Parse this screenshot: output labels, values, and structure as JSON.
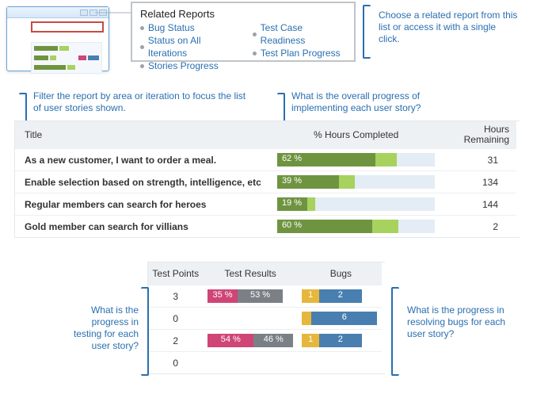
{
  "colors": {
    "link": "#2a6fb0",
    "bracket": "#2a6fb0",
    "highlight_border": "#c94a3f",
    "header_bg": "#eef1f4",
    "bar_track": "#e4ecf5",
    "green_dark": "#6f9440",
    "green_light": "#a7d25e",
    "gray": "#7b8087",
    "pink": "#cf4576",
    "yellow": "#e6b73c",
    "blue": "#487fb0",
    "bullet": "#9aa2ac"
  },
  "related": {
    "title": "Related Reports",
    "col1": [
      "Bug Status",
      "Status on All Iterations",
      "Stories Progress"
    ],
    "col2": [
      "Test Case Readiness",
      "Test Plan Progress"
    ]
  },
  "callouts": {
    "choose": "Choose a related report from this list or access it with a single click.",
    "filter": "Filter the report by area or iteration to focus the list of user stories shown.",
    "overall": "What is the overall progress of implementing each user story?",
    "testing": "What is the progress in testing for each user story?",
    "bugs": "What is the progress in resolving bugs for each user story?"
  },
  "stories": {
    "headers": {
      "title": "Title",
      "pct": "% Hours Completed",
      "rem_l1": "Hours",
      "rem_l2": "Remaining"
    },
    "rows": [
      {
        "title": "As a new customer, I want to order a meal.",
        "pct": 62,
        "light_extra": 14,
        "remaining": 31
      },
      {
        "title": "Enable selection based on strength, intelligence, etc",
        "pct": 39,
        "light_extra": 10,
        "remaining": 134
      },
      {
        "title": "Regular members can search for heroes",
        "pct": 19,
        "light_extra": 5,
        "remaining": 144
      },
      {
        "title": "Gold member can search for villians",
        "pct": 60,
        "light_extra": 17,
        "remaining": 2
      }
    ]
  },
  "tb": {
    "headers": {
      "points": "Test Points",
      "results": "Test Results",
      "bugs": "Bugs"
    },
    "rows": [
      {
        "points": 3,
        "pink": 35,
        "gray": 53,
        "bug_yellow_label": "1",
        "bug_blue_label": "2",
        "bug_yellow_w": 22,
        "bug_blue_w": 55
      },
      {
        "points": 0,
        "pink": 0,
        "gray": 0,
        "bug_yellow_label": "",
        "bug_blue_label": "6",
        "bug_yellow_w": 12,
        "bug_blue_w": 85
      },
      {
        "points": 2,
        "pink": 54,
        "gray": 46,
        "bug_yellow_label": "1",
        "bug_blue_label": "2",
        "bug_yellow_w": 22,
        "bug_blue_w": 55
      },
      {
        "points": 0,
        "pink": 0,
        "gray": 0,
        "bug_yellow_label": "",
        "bug_blue_label": "",
        "bug_yellow_w": 0,
        "bug_blue_w": 0
      }
    ]
  },
  "mini": {
    "rows": [
      {
        "g": 30,
        "l": 12
      },
      {
        "g": 18,
        "l": 8
      },
      {
        "g": 40,
        "l": 10
      }
    ],
    "accent": {
      "pink": 10,
      "blue": 14
    }
  }
}
